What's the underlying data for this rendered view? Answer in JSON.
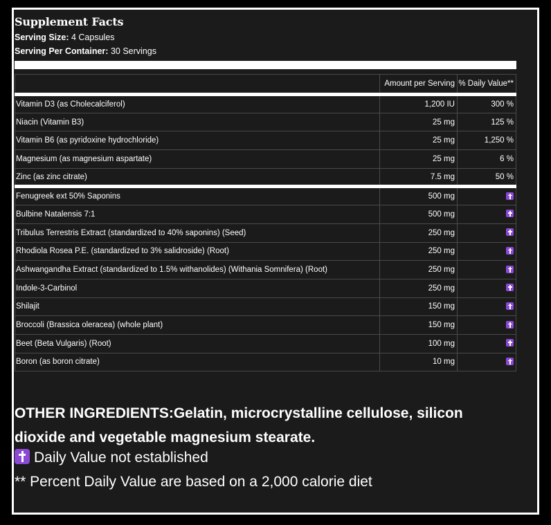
{
  "title": "Supplement Facts",
  "serving_size_label": "Serving Size:",
  "serving_size_value": "4 Capsules",
  "servings_label": "Serving Per Container:",
  "servings_value": "30 Servings",
  "columns": {
    "name": "",
    "amount": "Amount per Serving",
    "daily_value": "% Daily Value**"
  },
  "vitamins": [
    {
      "name": "Vitamin D3 (as Cholecalciferol)",
      "amount": "1,200 IU",
      "dv": "300 %"
    },
    {
      "name": "Niacin (Vitamin B3)",
      "amount": "25 mg",
      "dv": "125 %"
    },
    {
      "name": "Vitamin B6 (as pyridoxine hydrochloride)",
      "amount": "25 mg",
      "dv": "1,250 %"
    },
    {
      "name": "Magnesium (as magnesium aspartate)",
      "amount": "25 mg",
      "dv": "6 %"
    },
    {
      "name": "Zinc (as zinc citrate)",
      "amount": "7.5 mg",
      "dv": "50 %"
    }
  ],
  "botanicals": [
    {
      "name": "Fenugreek ext 50% Saponins",
      "amount": "500 mg",
      "dv_icon": "latin-cross-icon"
    },
    {
      "name": "Bulbine Natalensis 7:1",
      "amount": "500 mg",
      "dv_icon": "latin-cross-icon"
    },
    {
      "name": "Tribulus Terrestris Extract (standardized to 40% saponins) (Seed)",
      "amount": "250 mg",
      "dv_icon": "latin-cross-icon"
    },
    {
      "name": "Rhodiola Rosea P.E. (standardized to 3% salidroside) (Root)",
      "amount": "250 mg",
      "dv_icon": "latin-cross-icon"
    },
    {
      "name": "Ashwangandha Extract (standardized to 1.5% withanolides) (Withania Somnifera) (Root)",
      "amount": "250 mg",
      "dv_icon": "latin-cross-icon"
    },
    {
      "name": "Indole-3-Carbinol",
      "amount": "250 mg",
      "dv_icon": "latin-cross-icon"
    },
    {
      "name": "Shilajit",
      "amount": "150 mg",
      "dv_icon": "latin-cross-icon"
    },
    {
      "name": "Broccoli (Brassica oleracea) (whole plant)",
      "amount": "150 mg",
      "dv_icon": "latin-cross-icon"
    },
    {
      "name": "Beet (Beta Vulgaris) (Root)",
      "amount": "100 mg",
      "dv_icon": "latin-cross-icon"
    },
    {
      "name": "Boron (as boron citrate)",
      "amount": "10 mg",
      "dv_icon": "latin-cross-icon"
    }
  ],
  "other_ingredients": "OTHER INGREDIENTS:Gelatin, microcrystalline cellulose, silicon dioxide and vegetable magnesium stearate.",
  "footnote_cross": "Daily Value not established",
  "footnote_percent": "** Percent Daily Value are based on a 2,000 calorie diet",
  "colors": {
    "background": "#1b1b1b",
    "outer": "#000000",
    "text": "#ffffff",
    "icon": "#8b49d4"
  }
}
